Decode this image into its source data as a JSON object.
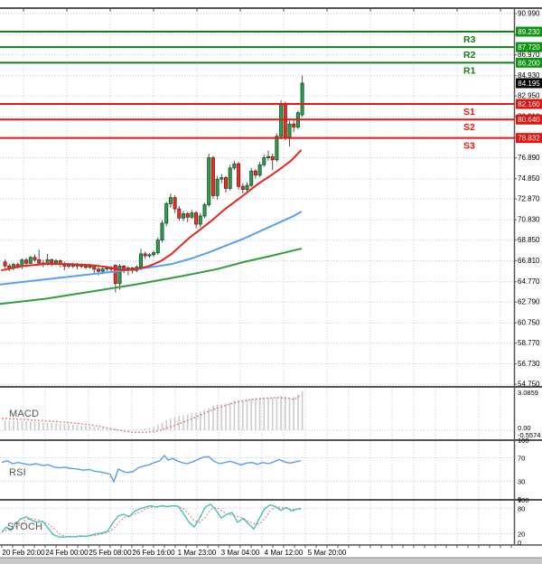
{
  "colors": {
    "background": "#ffffff",
    "grid": "#bcc9e4",
    "panel_border": "#555555",
    "bull_fill": "#2f9e4f",
    "bull_border": "#11512a",
    "bear_fill": "#e0352b",
    "bear_border": "#8a140b",
    "wick": "#555555",
    "ma_fast": "#e8261d",
    "ma_mid": "#57a0f0",
    "ma_slow": "#2f9e3f",
    "resistance": "#128012",
    "resistance_badge": "#0f9312",
    "support": "#ee1512",
    "support_badge": "#e5110c",
    "current_badge": "#000000",
    "badge_text": "#ffffff",
    "axis_text": "#000000",
    "macd_hist": "#cccccc",
    "macd_signal": "#e87878",
    "rsi_line": "#5d9ceb",
    "stoch_k": "#4cc0b5",
    "stoch_d": "#ef8585",
    "scrollbar": "#c9c9c9"
  },
  "panels": {
    "macd_label": "MACD",
    "rsi_label": "RSI",
    "stoch_label": "STOCH"
  },
  "chart_data": {
    "type": "candlestick",
    "x_axis": {
      "tick_labels": [
        "20 Feb 20:00",
        "24 Feb 00:00",
        "25 Feb 08:00",
        "26 Feb 16:00",
        "1 Mar 23:00",
        "3 Mar 04:00",
        "4 Mar 12:00",
        "5 Mar 20:00"
      ]
    },
    "y_axis": {
      "tick_labels": [
        "90.990",
        "88.950",
        "86.970",
        "84.930",
        "82.950",
        "80.910",
        "78.890",
        "76.890",
        "74.850",
        "72.870",
        "70.830",
        "68.850",
        "66.810",
        "64.770",
        "62.790",
        "60.750",
        "58.770",
        "56.730",
        "54.750"
      ]
    },
    "current_price": {
      "price": 84.195,
      "text": "84.195"
    },
    "levels": [
      {
        "label": "R3",
        "price": 89.23,
        "text": "89.230",
        "kind": "resistance"
      },
      {
        "label": "R2",
        "price": 87.72,
        "text": "87.720",
        "kind": "resistance"
      },
      {
        "label": "R1",
        "price": 86.2,
        "text": "86.200",
        "kind": "resistance"
      },
      {
        "label": "S1",
        "price": 82.16,
        "text": "82.160",
        "kind": "support"
      },
      {
        "label": "S2",
        "price": 80.64,
        "text": "80.640",
        "kind": "support"
      },
      {
        "label": "S3",
        "price": 78.832,
        "text": "78.832",
        "kind": "support"
      }
    ],
    "candles": [
      [
        66.7,
        66.95,
        66.1,
        66.32
      ],
      [
        66.32,
        66.55,
        65.82,
        66.1
      ],
      [
        66.1,
        66.62,
        65.92,
        66.45
      ],
      [
        66.45,
        66.66,
        66.08,
        66.28
      ],
      [
        66.28,
        67.05,
        66.0,
        66.9
      ],
      [
        66.9,
        67.12,
        66.4,
        66.58
      ],
      [
        66.58,
        67.3,
        66.48,
        67.15
      ],
      [
        67.15,
        67.42,
        66.7,
        66.92
      ],
      [
        66.92,
        67.9,
        66.42,
        66.6
      ],
      [
        66.6,
        66.92,
        66.2,
        66.5
      ],
      [
        66.5,
        67.5,
        66.38,
        66.92
      ],
      [
        66.92,
        67.05,
        66.3,
        66.6
      ],
      [
        66.6,
        67.0,
        66.4,
        66.82
      ],
      [
        66.82,
        66.95,
        66.2,
        66.5
      ],
      [
        66.5,
        66.72,
        65.9,
        66.3
      ],
      [
        66.3,
        66.6,
        66.08,
        66.42
      ],
      [
        66.42,
        66.62,
        66.1,
        66.3
      ],
      [
        66.3,
        66.6,
        66.0,
        66.42
      ],
      [
        66.42,
        66.55,
        66.1,
        66.28
      ],
      [
        66.28,
        66.5,
        66.0,
        66.18
      ],
      [
        66.18,
        66.5,
        66.05,
        66.32
      ],
      [
        66.32,
        66.42,
        65.6,
        66.0
      ],
      [
        66.0,
        66.22,
        65.4,
        65.8
      ],
      [
        65.8,
        66.22,
        65.5,
        66.02
      ],
      [
        66.02,
        66.3,
        65.8,
        66.12
      ],
      [
        66.12,
        66.3,
        65.7,
        66.0
      ],
      [
        66.38,
        66.48,
        63.72,
        64.6
      ],
      [
        64.6,
        66.5,
        64.0,
        66.3
      ],
      [
        66.3,
        66.42,
        65.6,
        65.9
      ],
      [
        65.9,
        66.3,
        65.4,
        66.12
      ],
      [
        66.12,
        66.22,
        65.58,
        65.88
      ],
      [
        65.88,
        66.4,
        65.7,
        66.2
      ],
      [
        66.2,
        68.0,
        65.9,
        67.5
      ],
      [
        67.5,
        67.72,
        67.0,
        67.3
      ],
      [
        67.3,
        67.6,
        67.08,
        67.42
      ],
      [
        67.42,
        67.8,
        67.2,
        67.62
      ],
      [
        67.62,
        69.1,
        67.4,
        68.85
      ],
      [
        68.85,
        70.8,
        68.6,
        70.5
      ],
      [
        70.5,
        72.6,
        70.2,
        72.4
      ],
      [
        72.4,
        73.4,
        72.0,
        73.0
      ],
      [
        73.0,
        73.25,
        71.5,
        71.9
      ],
      [
        71.9,
        72.2,
        70.75,
        71.0
      ],
      [
        71.0,
        71.7,
        70.7,
        71.42
      ],
      [
        71.42,
        71.6,
        70.6,
        71.08
      ],
      [
        71.08,
        71.8,
        70.9,
        71.5
      ],
      [
        71.5,
        71.7,
        70.0,
        70.4
      ],
      [
        70.4,
        71.5,
        70.1,
        71.2
      ],
      [
        71.2,
        72.5,
        71.0,
        72.3
      ],
      [
        72.3,
        77.3,
        72.1,
        76.9
      ],
      [
        76.9,
        77.1,
        72.9,
        73.2
      ],
      [
        73.2,
        75.1,
        72.8,
        74.8
      ],
      [
        74.8,
        75.3,
        74.4,
        74.95
      ],
      [
        74.95,
        75.1,
        73.5,
        73.9
      ],
      [
        73.9,
        76.2,
        73.7,
        75.9
      ],
      [
        75.9,
        76.6,
        75.7,
        76.3
      ],
      [
        76.3,
        76.5,
        73.8,
        74.1
      ],
      [
        74.1,
        74.4,
        73.4,
        73.8
      ],
      [
        73.8,
        74.5,
        73.5,
        74.2
      ],
      [
        74.2,
        75.9,
        74.0,
        75.6
      ],
      [
        75.6,
        75.8,
        74.9,
        75.2
      ],
      [
        75.2,
        76.5,
        75.0,
        76.2
      ],
      [
        76.2,
        77.2,
        76.0,
        76.9
      ],
      [
        76.9,
        77.6,
        76.6,
        77.0
      ],
      [
        77.0,
        77.3,
        75.7,
        76.7
      ],
      [
        76.7,
        79.3,
        76.5,
        79.0
      ],
      [
        79.0,
        82.5,
        78.7,
        82.1
      ],
      [
        82.2,
        82.4,
        78.6,
        78.9
      ],
      [
        78.9,
        80.5,
        78.0,
        80.2
      ],
      [
        80.2,
        80.6,
        79.4,
        79.9
      ],
      [
        79.9,
        81.5,
        79.7,
        81.3
      ],
      [
        81.1,
        84.93,
        80.9,
        84.195
      ]
    ],
    "moving_averages": {
      "fast": [
        [
          2,
          65.9
        ],
        [
          25,
          66.3
        ],
        [
          50,
          66.5
        ],
        [
          75,
          66.5
        ],
        [
          100,
          66.4
        ],
        [
          120,
          66.2
        ],
        [
          135,
          65.9
        ],
        [
          150,
          66.0
        ],
        [
          165,
          66.3
        ],
        [
          178,
          66.8
        ],
        [
          190,
          67.5
        ],
        [
          200,
          68.3
        ],
        [
          210,
          69.1
        ],
        [
          222,
          69.9
        ],
        [
          235,
          70.8
        ],
        [
          248,
          71.8
        ],
        [
          260,
          72.6
        ],
        [
          272,
          73.4
        ],
        [
          285,
          74.3
        ],
        [
          297,
          75.0
        ],
        [
          310,
          75.8
        ],
        [
          322,
          76.6
        ],
        [
          333,
          77.6
        ]
      ],
      "mid": [
        [
          0,
          64.5
        ],
        [
          40,
          64.9
        ],
        [
          80,
          65.3
        ],
        [
          120,
          65.7
        ],
        [
          160,
          66.1
        ],
        [
          190,
          66.5
        ],
        [
          210,
          67.0
        ],
        [
          230,
          67.6
        ],
        [
          250,
          68.3
        ],
        [
          270,
          69.0
        ],
        [
          290,
          69.8
        ],
        [
          310,
          70.6
        ],
        [
          325,
          71.2
        ],
        [
          333,
          71.6
        ]
      ],
      "slow": [
        [
          0,
          62.6
        ],
        [
          50,
          63.1
        ],
        [
          100,
          63.8
        ],
        [
          150,
          64.5
        ],
        [
          200,
          65.3
        ],
        [
          240,
          66.0
        ],
        [
          270,
          66.7
        ],
        [
          300,
          67.3
        ],
        [
          333,
          68.0
        ]
      ]
    },
    "macd": {
      "scale": [
        "3.0859",
        "0.00",
        "-0.5574"
      ],
      "histogram": [
        0.8,
        0.78,
        0.75,
        0.77,
        0.74,
        0.72,
        0.7,
        0.68,
        0.65,
        0.62,
        0.6,
        0.57,
        0.55,
        0.52,
        0.5,
        0.47,
        0.44,
        0.4,
        0.37,
        0.34,
        0.3,
        0.27,
        0.24,
        0.2,
        0.17,
        0.14,
        0.1,
        0.07,
        0.05,
        0.04,
        0.05,
        0.07,
        0.1,
        0.14,
        0.2,
        0.3,
        0.45,
        0.62,
        0.8,
        0.95,
        1.05,
        1.12,
        1.18,
        1.25,
        1.32,
        1.4,
        1.5,
        1.62,
        1.78,
        1.95,
        2.05,
        2.1,
        2.15,
        2.25,
        2.35,
        2.4,
        2.42,
        2.45,
        2.5,
        2.55,
        2.6,
        2.62,
        2.6,
        2.58,
        2.65,
        2.75,
        2.7,
        2.62,
        2.68,
        2.85,
        3.09
      ],
      "signal": [
        [
          2,
          0.95
        ],
        [
          30,
          0.84
        ],
        [
          60,
          0.7
        ],
        [
          90,
          0.52
        ],
        [
          110,
          0.32
        ],
        [
          130,
          0.02
        ],
        [
          145,
          -0.15
        ],
        [
          160,
          -0.18
        ],
        [
          175,
          -0.05
        ],
        [
          190,
          0.3
        ],
        [
          205,
          0.7
        ],
        [
          220,
          1.15
        ],
        [
          235,
          1.62
        ],
        [
          250,
          1.98
        ],
        [
          265,
          2.28
        ],
        [
          280,
          2.46
        ],
        [
          295,
          2.56
        ],
        [
          308,
          2.6
        ],
        [
          318,
          2.54
        ],
        [
          326,
          2.45
        ],
        [
          333,
          2.82
        ]
      ]
    },
    "rsi": {
      "scale": [
        "100",
        "70",
        "30",
        "0"
      ],
      "points": [
        [
          2,
          62
        ],
        [
          8,
          65
        ],
        [
          14,
          60
        ],
        [
          20,
          62
        ],
        [
          26,
          60
        ],
        [
          33,
          58
        ],
        [
          40,
          60
        ],
        [
          47,
          57
        ],
        [
          54,
          58
        ],
        [
          60,
          54
        ],
        [
          66,
          53
        ],
        [
          72,
          54
        ],
        [
          78,
          52
        ],
        [
          85,
          51
        ],
        [
          92,
          49
        ],
        [
          99,
          50
        ],
        [
          105,
          47
        ],
        [
          111,
          46
        ],
        [
          117,
          44
        ],
        [
          122,
          42
        ],
        [
          126,
          29
        ],
        [
          131,
          51
        ],
        [
          136,
          47
        ],
        [
          141,
          45
        ],
        [
          147,
          46
        ],
        [
          153,
          53
        ],
        [
          159,
          56
        ],
        [
          165,
          58
        ],
        [
          171,
          62
        ],
        [
          177,
          65
        ],
        [
          182,
          74
        ],
        [
          186,
          66
        ],
        [
          191,
          69
        ],
        [
          196,
          65
        ],
        [
          201,
          62
        ],
        [
          207,
          60
        ],
        [
          213,
          63
        ],
        [
          219,
          67
        ],
        [
          225,
          71
        ],
        [
          231,
          72
        ],
        [
          237,
          64
        ],
        [
          243,
          60
        ],
        [
          249,
          62
        ],
        [
          255,
          64
        ],
        [
          261,
          61
        ],
        [
          267,
          58
        ],
        [
          273,
          61
        ],
        [
          279,
          62
        ],
        [
          285,
          59
        ],
        [
          291,
          62
        ],
        [
          297,
          60
        ],
        [
          303,
          63
        ],
        [
          309,
          67
        ],
        [
          315,
          63
        ],
        [
          321,
          61
        ],
        [
          327,
          63
        ],
        [
          333,
          65
        ]
      ]
    },
    "stoch": {
      "scale": [
        "100",
        "80",
        "20",
        "0"
      ],
      "k": [
        [
          2,
          24
        ],
        [
          7,
          36
        ],
        [
          12,
          28
        ],
        [
          17,
          44
        ],
        [
          23,
          55
        ],
        [
          29,
          60
        ],
        [
          35,
          52
        ],
        [
          41,
          47
        ],
        [
          47,
          50
        ],
        [
          53,
          34
        ],
        [
          59,
          18
        ],
        [
          65,
          13
        ],
        [
          71,
          12
        ],
        [
          77,
          14
        ],
        [
          83,
          13
        ],
        [
          89,
          15
        ],
        [
          95,
          14
        ],
        [
          101,
          17
        ],
        [
          107,
          20
        ],
        [
          113,
          22
        ],
        [
          119,
          26
        ],
        [
          125,
          46
        ],
        [
          131,
          62
        ],
        [
          137,
          66
        ],
        [
          143,
          60
        ],
        [
          149,
          73
        ],
        [
          155,
          79
        ],
        [
          161,
          83
        ],
        [
          167,
          86
        ],
        [
          173,
          83
        ],
        [
          179,
          86
        ],
        [
          185,
          84
        ],
        [
          191,
          86
        ],
        [
          197,
          85
        ],
        [
          203,
          68
        ],
        [
          209,
          48
        ],
        [
          215,
          36
        ],
        [
          221,
          57
        ],
        [
          227,
          82
        ],
        [
          233,
          90
        ],
        [
          239,
          76
        ],
        [
          245,
          57
        ],
        [
          251,
          66
        ],
        [
          257,
          70
        ],
        [
          263,
          47
        ],
        [
          269,
          56
        ],
        [
          275,
          44
        ],
        [
          281,
          31
        ],
        [
          287,
          56
        ],
        [
          293,
          79
        ],
        [
          299,
          88
        ],
        [
          305,
          84
        ],
        [
          311,
          75
        ],
        [
          317,
          82
        ],
        [
          323,
          74
        ],
        [
          329,
          78
        ],
        [
          333,
          80
        ]
      ]
    }
  }
}
